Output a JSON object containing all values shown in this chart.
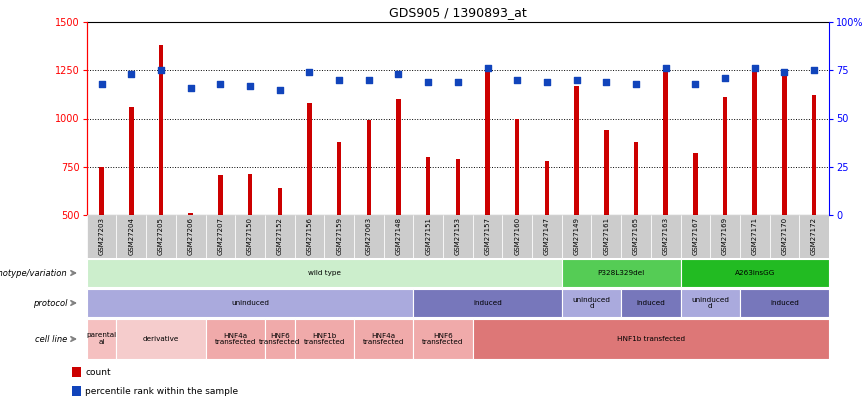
{
  "title": "GDS905 / 1390893_at",
  "samples": [
    "GSM27203",
    "GSM27204",
    "GSM27205",
    "GSM27206",
    "GSM27207",
    "GSM27150",
    "GSM27152",
    "GSM27156",
    "GSM27159",
    "GSM27063",
    "GSM27148",
    "GSM27151",
    "GSM27153",
    "GSM27157",
    "GSM27160",
    "GSM27147",
    "GSM27149",
    "GSM27161",
    "GSM27165",
    "GSM27163",
    "GSM27167",
    "GSM27169",
    "GSM27171",
    "GSM27170",
    "GSM27172"
  ],
  "counts": [
    750,
    1060,
    1380,
    510,
    705,
    715,
    640,
    1080,
    880,
    990,
    1100,
    800,
    790,
    1270,
    1000,
    780,
    1170,
    940,
    880,
    1250,
    820,
    1110,
    1270,
    1230,
    1120
  ],
  "percentile_vals": [
    68,
    73,
    75,
    66,
    68,
    67,
    65,
    74,
    70,
    70,
    73,
    69,
    69,
    76,
    70,
    69,
    70,
    69,
    68,
    76,
    68,
    71,
    76,
    74,
    75
  ],
  "ylim_left": [
    500,
    1500
  ],
  "ylim_right": [
    0,
    100
  ],
  "yticks_left": [
    500,
    750,
    1000,
    1250,
    1500
  ],
  "yticks_right": [
    0,
    25,
    50,
    75,
    100
  ],
  "bar_color": "#cc0000",
  "dot_color": "#1144bb",
  "genotype_segments": [
    {
      "text": "wild type",
      "start": 0,
      "end": 16,
      "color": "#cceecc"
    },
    {
      "text": "P328L329del",
      "start": 16,
      "end": 20,
      "color": "#55cc55"
    },
    {
      "text": "A263insGG",
      "start": 20,
      "end": 25,
      "color": "#22bb22"
    }
  ],
  "protocol_segments": [
    {
      "text": "uninduced",
      "start": 0,
      "end": 11,
      "color": "#aaaadd"
    },
    {
      "text": "induced",
      "start": 11,
      "end": 16,
      "color": "#7777bb"
    },
    {
      "text": "uninduced\nd",
      "start": 16,
      "end": 18,
      "color": "#aaaadd"
    },
    {
      "text": "induced",
      "start": 18,
      "end": 20,
      "color": "#7777bb"
    },
    {
      "text": "uninduced\nd",
      "start": 20,
      "end": 22,
      "color": "#aaaadd"
    },
    {
      "text": "induced",
      "start": 22,
      "end": 25,
      "color": "#7777bb"
    }
  ],
  "cellline_segments": [
    {
      "text": "parental\nal",
      "start": 0,
      "end": 1,
      "color": "#f5c0c0"
    },
    {
      "text": "derivative",
      "start": 1,
      "end": 4,
      "color": "#f5cccc"
    },
    {
      "text": "HNF4a\ntransfected",
      "start": 4,
      "end": 6,
      "color": "#f0aaaa"
    },
    {
      "text": "HNF6\ntransfected",
      "start": 6,
      "end": 7,
      "color": "#f0aaaa"
    },
    {
      "text": "HNF1b\ntransfected",
      "start": 7,
      "end": 9,
      "color": "#f0aaaa"
    },
    {
      "text": "HNF4a\ntransfected",
      "start": 9,
      "end": 11,
      "color": "#f0aaaa"
    },
    {
      "text": "HNF6\ntransfected",
      "start": 11,
      "end": 13,
      "color": "#f0aaaa"
    },
    {
      "text": "HNF1b transfected",
      "start": 13,
      "end": 25,
      "color": "#dd7777"
    }
  ],
  "legend": [
    {
      "color": "#cc0000",
      "label": "count"
    },
    {
      "color": "#1144bb",
      "label": "percentile rank within the sample"
    }
  ]
}
